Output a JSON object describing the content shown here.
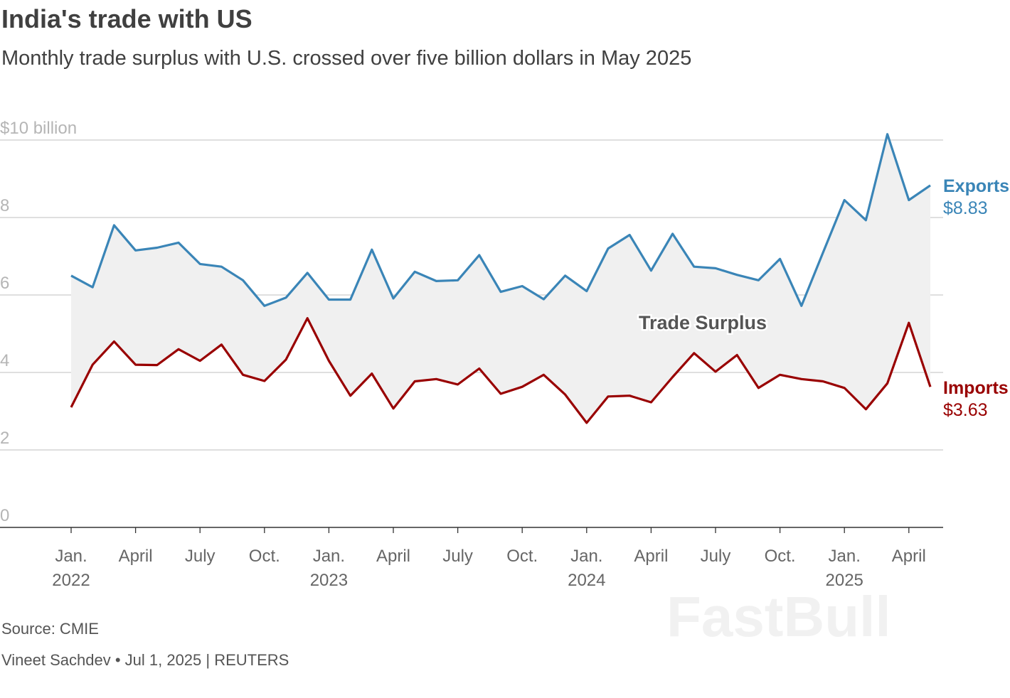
{
  "title": "India's trade with US",
  "subtitle": "Monthly trade surplus with U.S. crossed over five billion dollars in May 2025",
  "source": "Source: CMIE",
  "credit": "Vineet Sachdev • Jul 1, 2025 | REUTERS",
  "watermark": "FastBull",
  "colors": {
    "exports": "#3a85b7",
    "imports": "#990000",
    "surplus_fill": "#f0f0f0",
    "grid": "#cccccc"
  },
  "chart_data": {
    "type": "line",
    "x_start": "2022-01",
    "x_end": "2025-05",
    "ylim": [
      0,
      10
    ],
    "y_ticks": [
      {
        "value": 10,
        "label": "$10 billion"
      },
      {
        "value": 8,
        "label": "8"
      },
      {
        "value": 6,
        "label": "6"
      },
      {
        "value": 4,
        "label": "4"
      },
      {
        "value": 2,
        "label": "2"
      },
      {
        "value": 0,
        "label": "0"
      }
    ],
    "x_ticks": [
      {
        "index": 0,
        "line1": "Jan.",
        "line2": "2022"
      },
      {
        "index": 3,
        "line1": "April",
        "line2": ""
      },
      {
        "index": 6,
        "line1": "July",
        "line2": ""
      },
      {
        "index": 9,
        "line1": "Oct.",
        "line2": ""
      },
      {
        "index": 12,
        "line1": "Jan.",
        "line2": "2023"
      },
      {
        "index": 15,
        "line1": "April",
        "line2": ""
      },
      {
        "index": 18,
        "line1": "July",
        "line2": ""
      },
      {
        "index": 21,
        "line1": "Oct.",
        "line2": ""
      },
      {
        "index": 24,
        "line1": "Jan.",
        "line2": "2024"
      },
      {
        "index": 27,
        "line1": "April",
        "line2": ""
      },
      {
        "index": 30,
        "line1": "July",
        "line2": ""
      },
      {
        "index": 33,
        "line1": "Oct.",
        "line2": ""
      },
      {
        "index": 36,
        "line1": "Jan.",
        "line2": "2025"
      },
      {
        "index": 39,
        "line1": "April",
        "line2": ""
      }
    ],
    "annotation": "Trade Surplus",
    "series": [
      {
        "name": "Exports",
        "last_label": "$8.83",
        "values": [
          6.5,
          6.2,
          7.8,
          7.15,
          7.22,
          7.35,
          6.8,
          6.73,
          6.38,
          5.72,
          5.93,
          6.57,
          5.88,
          5.88,
          7.17,
          5.91,
          6.6,
          6.36,
          6.38,
          7.03,
          6.08,
          6.23,
          5.89,
          6.5,
          6.1,
          7.2,
          7.55,
          6.63,
          7.58,
          6.73,
          6.69,
          6.52,
          6.38,
          6.93,
          5.72,
          7.09,
          8.45,
          7.93,
          10.15,
          8.45,
          8.83
        ]
      },
      {
        "name": "Imports",
        "last_label": "$3.63",
        "values": [
          3.1,
          4.2,
          4.8,
          4.2,
          4.19,
          4.6,
          4.3,
          4.72,
          3.94,
          3.78,
          4.33,
          5.4,
          4.3,
          3.4,
          3.97,
          3.07,
          3.77,
          3.83,
          3.69,
          4.1,
          3.45,
          3.63,
          3.94,
          3.43,
          2.7,
          3.38,
          3.4,
          3.23,
          3.88,
          4.5,
          4.02,
          4.45,
          3.6,
          3.94,
          3.83,
          3.77,
          3.6,
          3.05,
          3.72,
          5.28,
          3.63
        ]
      }
    ]
  }
}
